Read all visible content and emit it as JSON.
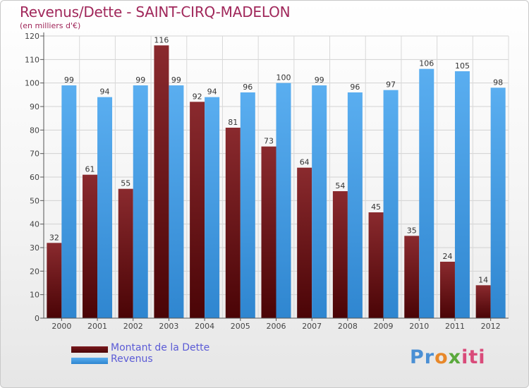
{
  "header": {
    "title": "Revenus/Dette - SAINT-CIRQ-MADELON",
    "subtitle": "(en milliers d'€)"
  },
  "legend": {
    "items": [
      {
        "label": "Montant de la Dette",
        "color": "#6b0f14"
      },
      {
        "label": "Revenus",
        "color": "#4da3e8"
      }
    ]
  },
  "logo": {
    "text": "Proxiti"
  },
  "chart_data": {
    "type": "bar",
    "title": "Revenus/Dette - SAINT-CIRQ-MADELON",
    "ylabel": "(en milliers d'€)",
    "xlabel": "",
    "categories": [
      "2000",
      "2001",
      "2002",
      "2003",
      "2004",
      "2005",
      "2006",
      "2007",
      "2008",
      "2009",
      "2010",
      "2011",
      "2012"
    ],
    "series": [
      {
        "name": "Montant de la Dette",
        "color": "#6b0f14",
        "values": [
          32,
          61,
          55,
          116,
          92,
          81,
          73,
          64,
          54,
          45,
          35,
          24,
          14
        ]
      },
      {
        "name": "Revenus",
        "color": "#4da3e8",
        "values": [
          99,
          94,
          99,
          99,
          94,
          96,
          100,
          99,
          96,
          97,
          106,
          105,
          98
        ]
      }
    ],
    "ylim": [
      0,
      120
    ],
    "yticks": [
      0,
      10,
      20,
      30,
      40,
      50,
      60,
      70,
      80,
      90,
      100,
      110,
      120
    ],
    "grid": true,
    "legend_position": "bottom-left"
  }
}
